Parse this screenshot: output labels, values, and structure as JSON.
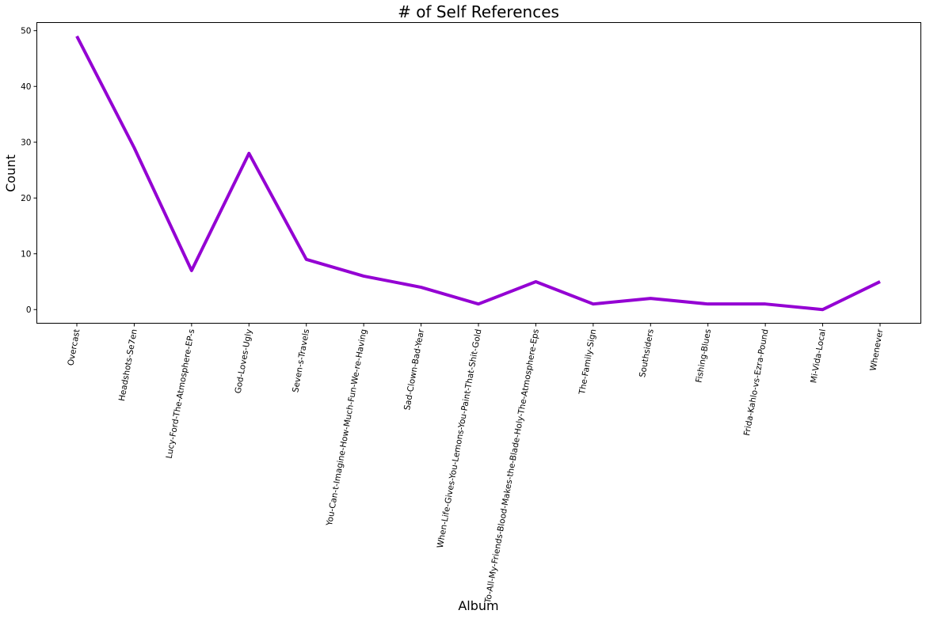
{
  "chart_data": {
    "type": "line",
    "title": "# of Self References",
    "xlabel": "Album",
    "ylabel": "Count",
    "categories": [
      "Overcast",
      "Headshots-Se7en",
      "Lucy-Ford-The-Atmosphere-EP-s",
      "God-Loves-Ugly",
      "Seven-s-Travels",
      "You-Can-t-Imagine-How-Much-Fun-We-re-Having",
      "Sad-Clown-Bad-Year",
      "When-Life-Gives-You-Lemons-You-Paint-That-Shit-Gold",
      "To-All-My-Friends-Blood-Makes-the-Blade-Holy-The-Atmosphere-Eps",
      "The-Family-Sign",
      "Southsiders",
      "Fishing-Blues",
      "Frida-Kahlo-vs-Ezra-Pound",
      "Mi-Vida-Local",
      "Whenever"
    ],
    "values": [
      49,
      29,
      7,
      28,
      9,
      6,
      4,
      1,
      5,
      1,
      2,
      1,
      1,
      0,
      5
    ],
    "yticks": [
      0,
      10,
      20,
      30,
      40,
      50
    ],
    "ylim": [
      -2.45,
      51.45
    ],
    "grid": false,
    "line_color": "#9400D3"
  }
}
